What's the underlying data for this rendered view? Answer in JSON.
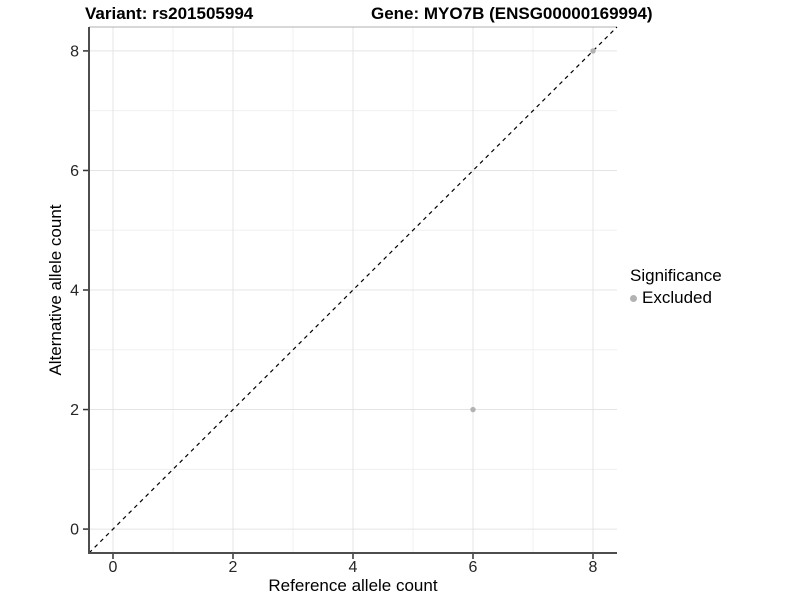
{
  "chart_data": {
    "type": "scatter",
    "title_left": "Variant: rs201505994",
    "title_right": "Gene: MYO7B (ENSG00000169994)",
    "xlabel": "Reference allele count",
    "ylabel": "Alternative allele count",
    "xlim": [
      -0.4,
      8.4
    ],
    "ylim": [
      -0.4,
      8.4
    ],
    "x_ticks": [
      0,
      2,
      4,
      6,
      8
    ],
    "y_ticks": [
      0,
      2,
      4,
      6,
      8
    ],
    "x_minor_ticks": [
      1,
      3,
      5,
      7
    ],
    "y_minor_ticks": [
      1,
      3,
      5,
      7
    ],
    "grid": "major+minor",
    "legend_position": "right",
    "legend": {
      "title": "Significance",
      "items": [
        {
          "label": "Excluded",
          "color": "#b2b2b2"
        }
      ]
    },
    "series": [
      {
        "name": "Excluded",
        "color": "#b2b2b2",
        "points": [
          {
            "x": 6,
            "y": 2
          },
          {
            "x": 8,
            "y": 8
          }
        ]
      }
    ],
    "reference_line": {
      "style": "dashed",
      "from": [
        -0.4,
        -0.4
      ],
      "to": [
        8.4,
        8.4
      ],
      "color": "#000000"
    },
    "colors": {
      "grid_major": "#e4e4e4",
      "grid_minor": "#f0f0f0",
      "axis_line": "#4d4d4d",
      "tick": "#333333",
      "tick_label": "#262626",
      "panel_border_top": "#b0b0b0",
      "background": "#ffffff"
    }
  }
}
